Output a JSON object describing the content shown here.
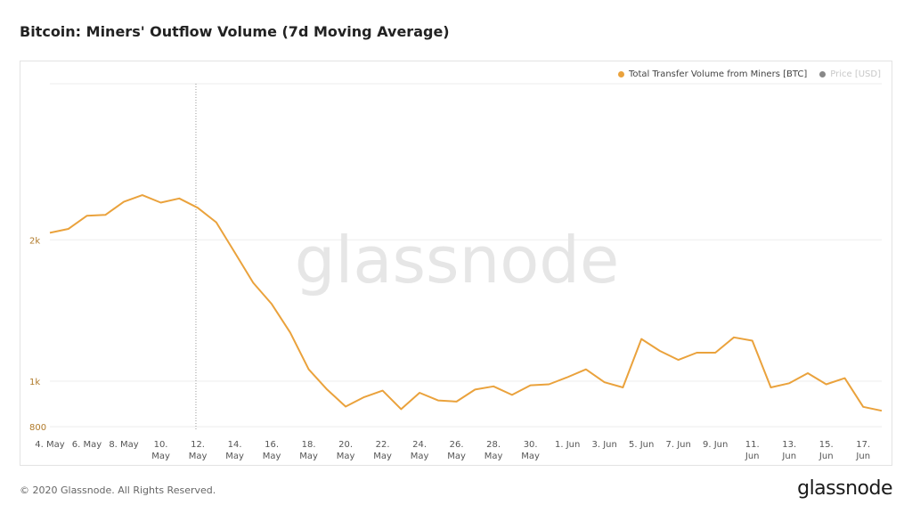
{
  "header": {
    "title": "Bitcoin: Miners' Outflow Volume (7d Moving Average)"
  },
  "legend": {
    "items": [
      {
        "label": "Total Transfer Volume from Miners [BTC]",
        "color": "#f7931a",
        "active": true
      },
      {
        "label": "Price [USD]",
        "color": "#888888",
        "active": false
      }
    ]
  },
  "watermark": "glassnode",
  "footer": {
    "copyright": "© 2020 Glassnode. All Rights Reserved.",
    "logo": "glassnode"
  },
  "colors": {
    "series": "#eaa23c",
    "axis_text_y": "#b07a2a",
    "grid": "#eeeeee",
    "watermark": "#e8e8e8"
  },
  "chart_data": {
    "type": "line",
    "title": "Bitcoin: Miners' Outflow Volume (7d Moving Average)",
    "y_scale": "log",
    "ylim": [
      790,
      4300
    ],
    "y_ticks": [
      {
        "value": 800,
        "label": "800"
      },
      {
        "value": 1000,
        "label": "1k"
      },
      {
        "value": 2000,
        "label": "2k"
      }
    ],
    "x_ticks": [
      {
        "day": 0,
        "label": [
          "4. May"
        ]
      },
      {
        "day": 2,
        "label": [
          "6. May"
        ]
      },
      {
        "day": 4,
        "label": [
          "8. May"
        ]
      },
      {
        "day": 6,
        "label": [
          "10.",
          "May"
        ]
      },
      {
        "day": 8,
        "label": [
          "12.",
          "May"
        ]
      },
      {
        "day": 10,
        "label": [
          "14.",
          "May"
        ]
      },
      {
        "day": 12,
        "label": [
          "16.",
          "May"
        ]
      },
      {
        "day": 14,
        "label": [
          "18.",
          "May"
        ]
      },
      {
        "day": 16,
        "label": [
          "20.",
          "May"
        ]
      },
      {
        "day": 18,
        "label": [
          "22.",
          "May"
        ]
      },
      {
        "day": 20,
        "label": [
          "24.",
          "May"
        ]
      },
      {
        "day": 22,
        "label": [
          "26.",
          "May"
        ]
      },
      {
        "day": 24,
        "label": [
          "28.",
          "May"
        ]
      },
      {
        "day": 26,
        "label": [
          "30.",
          "May"
        ]
      },
      {
        "day": 28,
        "label": [
          "1. Jun"
        ]
      },
      {
        "day": 30,
        "label": [
          "3. Jun"
        ]
      },
      {
        "day": 32,
        "label": [
          "5. Jun"
        ]
      },
      {
        "day": 34,
        "label": [
          "7. Jun"
        ]
      },
      {
        "day": 36,
        "label": [
          "9. Jun"
        ]
      },
      {
        "day": 38,
        "label": [
          "11.",
          "Jun"
        ]
      },
      {
        "day": 40,
        "label": [
          "13.",
          "Jun"
        ]
      },
      {
        "day": 42,
        "label": [
          "15.",
          "Jun"
        ]
      },
      {
        "day": 44,
        "label": [
          "17.",
          "Jun"
        ]
      }
    ],
    "marker_line_day": 7.9,
    "series": [
      {
        "name": "Total Transfer Volume from Miners [BTC]",
        "x": [
          0,
          1,
          2,
          3,
          4,
          5,
          6,
          7,
          8,
          9,
          10,
          11,
          12,
          13,
          14,
          15,
          16,
          17,
          18,
          19,
          20,
          21,
          22,
          23,
          24,
          25,
          26,
          27,
          28,
          29,
          30,
          31,
          32,
          33,
          34,
          35,
          36,
          37,
          38,
          39,
          40,
          41,
          42,
          43,
          44,
          45
        ],
        "values": [
          2070,
          2110,
          2250,
          2260,
          2410,
          2490,
          2400,
          2450,
          2340,
          2180,
          1880,
          1620,
          1460,
          1270,
          1060,
          960,
          883,
          925,
          955,
          872,
          945,
          910,
          905,
          960,
          975,
          935,
          980,
          985,
          1020,
          1060,
          995,
          970,
          1230,
          1160,
          1110,
          1150,
          1150,
          1240,
          1220,
          970,
          990,
          1040,
          985,
          1015,
          882,
          865
        ]
      }
    ]
  }
}
